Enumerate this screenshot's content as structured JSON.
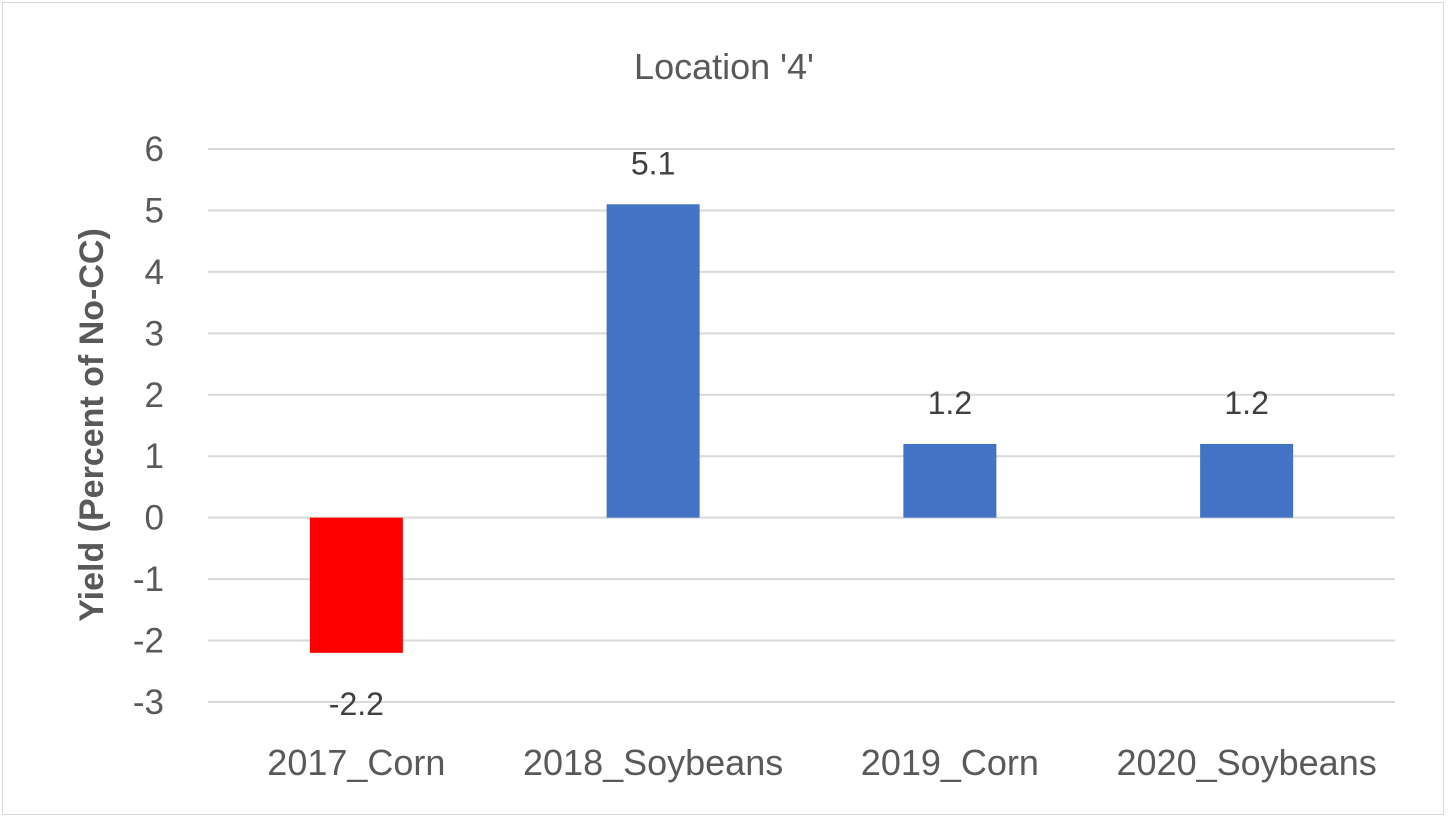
{
  "chart_data": {
    "type": "bar",
    "title": "Location '4'",
    "xlabel": "",
    "ylabel": "Yield (Percent of No-CC)",
    "categories": [
      "2017_Corn",
      "2018_Soybeans",
      "2019_Corn",
      "2020_Soybeans"
    ],
    "values": [
      -2.2,
      5.1,
      1.2,
      1.2
    ],
    "data_labels": [
      "-2.2",
      "5.1",
      "1.2",
      "1.2"
    ],
    "bar_colors": [
      "#ff0000",
      "#4472c4",
      "#4472c4",
      "#4472c4"
    ],
    "ylim": [
      -3,
      6
    ],
    "yticks": [
      6,
      5,
      4,
      3,
      2,
      1,
      0,
      -1,
      -2,
      -3
    ],
    "grid": true,
    "legend": "none"
  }
}
